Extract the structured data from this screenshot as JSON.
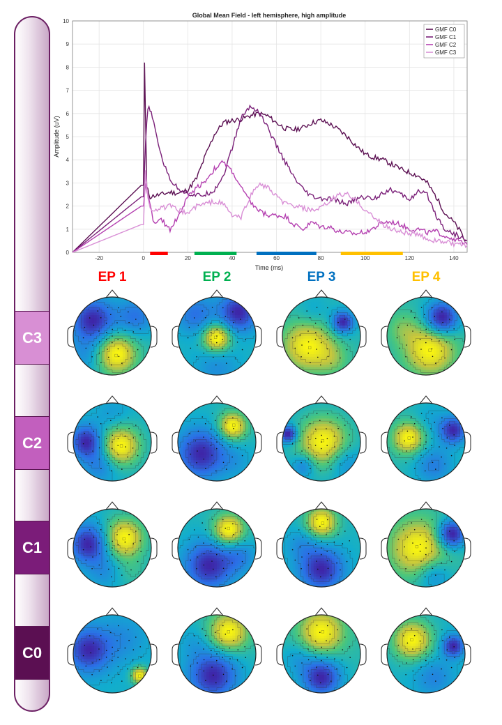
{
  "chart_data": {
    "type": "line",
    "title": "Global Mean Field - left hemisphere, high amplitude",
    "xlabel": "Time (ms)",
    "ylabel": "Amplitude (uV)",
    "xlim": [
      -32,
      146
    ],
    "ylim": [
      0,
      10
    ],
    "xticks": [
      -20,
      0,
      20,
      40,
      60,
      80,
      100,
      120,
      140
    ],
    "yticks": [
      0,
      1,
      2,
      3,
      4,
      5,
      6,
      7,
      8,
      9,
      10
    ],
    "grid": true,
    "legend_position": "top-right",
    "series": [
      {
        "name": "GMF C0",
        "color": "#5b0f52",
        "x": [
          -32,
          -1,
          0,
          0.5,
          1.5,
          3,
          5,
          8,
          12,
          16,
          20,
          24,
          28,
          32,
          36,
          40,
          44,
          48,
          52,
          56,
          60,
          64,
          68,
          72,
          76,
          80,
          84,
          88,
          92,
          96,
          100,
          104,
          108,
          112,
          116,
          120,
          124,
          128,
          132,
          136,
          140,
          143,
          145,
          146
        ],
        "y": [
          0,
          2.9,
          2.9,
          8.2,
          2.8,
          2.4,
          2.45,
          2.5,
          2.6,
          2.55,
          2.7,
          3.2,
          4.2,
          5.1,
          5.6,
          5.7,
          5.75,
          5.9,
          6.0,
          5.9,
          5.6,
          5.35,
          5.3,
          5.4,
          5.6,
          5.7,
          5.55,
          5.3,
          5.0,
          4.6,
          4.25,
          4.1,
          4.0,
          3.8,
          3.6,
          3.45,
          3.3,
          3.0,
          2.4,
          1.7,
          1.3,
          0.9,
          0.5,
          0.5
        ]
      },
      {
        "name": "GMF C1",
        "color": "#7a1f78",
        "x": [
          -32,
          -1,
          0,
          1,
          2,
          3,
          4,
          6,
          8,
          10,
          12,
          14,
          16,
          20,
          24,
          28,
          32,
          36,
          40,
          44,
          48,
          52,
          56,
          60,
          64,
          68,
          72,
          76,
          80,
          84,
          88,
          92,
          96,
          100,
          104,
          108,
          112,
          116,
          120,
          124,
          128,
          132,
          136,
          140,
          144,
          146
        ],
        "y": [
          0,
          2.4,
          2.4,
          4.8,
          6.2,
          6.2,
          5.8,
          5.0,
          4.2,
          3.6,
          3.2,
          2.9,
          2.75,
          2.55,
          2.45,
          2.5,
          2.7,
          3.3,
          4.5,
          5.8,
          6.3,
          6.1,
          5.4,
          4.6,
          3.9,
          3.2,
          2.7,
          2.4,
          2.3,
          2.3,
          2.2,
          2.1,
          2.3,
          2.4,
          2.3,
          2.6,
          2.7,
          2.5,
          2.3,
          2.6,
          2.5,
          1.6,
          1.0,
          0.8,
          0.6,
          0.5
        ]
      },
      {
        "name": "GMF C2",
        "color": "#b43fb0",
        "x": [
          -32,
          -1,
          0,
          1,
          3,
          5,
          8,
          12,
          16,
          20,
          24,
          28,
          32,
          36,
          40,
          44,
          48,
          52,
          56,
          60,
          64,
          68,
          72,
          76,
          80,
          84,
          88,
          92,
          96,
          100,
          104,
          108,
          112,
          116,
          120,
          124,
          128,
          132,
          136,
          140,
          144,
          146
        ],
        "y": [
          0,
          2.0,
          2.0,
          3.0,
          2.0,
          1.2,
          1.4,
          1.0,
          1.6,
          2.4,
          2.8,
          3.1,
          3.6,
          3.9,
          3.5,
          2.8,
          2.2,
          1.8,
          1.6,
          1.6,
          1.55,
          1.2,
          1.0,
          1.3,
          1.1,
          1.1,
          0.9,
          0.85,
          0.8,
          0.9,
          1.05,
          1.3,
          1.3,
          1.2,
          1.0,
          1.0,
          0.85,
          0.9,
          0.7,
          0.6,
          0.4,
          0.35
        ]
      },
      {
        "name": "GMF C3",
        "color": "#d98fd6",
        "x": [
          -32,
          -1,
          0,
          1,
          2,
          3,
          5,
          8,
          12,
          16,
          20,
          24,
          28,
          32,
          36,
          40,
          44,
          48,
          52,
          56,
          60,
          64,
          68,
          72,
          76,
          80,
          84,
          88,
          92,
          96,
          100,
          104,
          108,
          112,
          116,
          120,
          124,
          128,
          132,
          136,
          140,
          144,
          146
        ],
        "y": [
          0,
          1.2,
          1.2,
          3.6,
          2.3,
          1.9,
          1.85,
          1.9,
          2.0,
          1.8,
          1.7,
          2.0,
          2.1,
          2.2,
          2.1,
          1.6,
          1.5,
          2.4,
          2.95,
          2.8,
          2.4,
          2.1,
          2.0,
          1.9,
          1.8,
          1.9,
          2.2,
          2.5,
          2.5,
          2.2,
          1.85,
          1.5,
          1.2,
          1.0,
          0.9,
          0.8,
          0.75,
          0.6,
          0.5,
          0.45,
          0.35,
          0.3,
          0.3
        ]
      }
    ],
    "epoch_bars": [
      {
        "label": "EP 1",
        "start": 3,
        "end": 11,
        "color": "#ff0000"
      },
      {
        "label": "EP 2",
        "start": 23,
        "end": 42,
        "color": "#00b050"
      },
      {
        "label": "EP 3",
        "start": 51,
        "end": 78,
        "color": "#0070c0"
      },
      {
        "label": "EP 4",
        "start": 89,
        "end": 117,
        "color": "#ffc000"
      }
    ]
  },
  "epochs": [
    {
      "label": "EP 1",
      "color": "#ff0000"
    },
    {
      "label": "EP 2",
      "color": "#00b050"
    },
    {
      "label": "EP 3",
      "color": "#0070c0"
    },
    {
      "label": "EP 4",
      "color": "#ffc000"
    }
  ],
  "conditions": [
    {
      "label": "C3",
      "color": "#d88fd4"
    },
    {
      "label": "C2",
      "color": "#c25fbe"
    },
    {
      "label": "C1",
      "color": "#7b1c79"
    },
    {
      "label": "C0",
      "color": "#5b0f52"
    }
  ],
  "topomaps": [
    {
      "row": "C3",
      "maps": [
        {
          "blobs": [
            {
              "u": 0.1,
              "v": 0.45,
              "a": 0.9,
              "s": 0.35
            },
            {
              "u": -0.5,
              "v": -0.4,
              "a": -0.9,
              "s": 0.4
            },
            {
              "u": 0.6,
              "v": -0.5,
              "a": -0.5,
              "s": 0.35
            },
            {
              "u": -0.7,
              "v": 0.5,
              "a": -0.3,
              "s": 0.35
            }
          ]
        },
        {
          "blobs": [
            {
              "u": 0.0,
              "v": 0.05,
              "a": 1.1,
              "s": 0.25
            },
            {
              "u": 0.55,
              "v": -0.6,
              "a": -0.9,
              "s": 0.35
            },
            {
              "u": -0.55,
              "v": -0.55,
              "a": -0.5,
              "s": 0.35
            },
            {
              "u": 0.0,
              "v": 0.8,
              "a": -0.3,
              "s": 0.4
            }
          ]
        },
        {
          "blobs": [
            {
              "u": -0.35,
              "v": 0.25,
              "a": 0.9,
              "s": 0.45
            },
            {
              "u": 0.55,
              "v": -0.35,
              "a": -1.0,
              "s": 0.2
            },
            {
              "u": 0.3,
              "v": 0.6,
              "a": 0.3,
              "s": 0.3
            },
            {
              "u": -0.2,
              "v": -0.6,
              "a": -0.2,
              "s": 0.3
            }
          ]
        },
        {
          "blobs": [
            {
              "u": 0.1,
              "v": 0.35,
              "a": 0.9,
              "s": 0.45
            },
            {
              "u": 0.4,
              "v": -0.45,
              "a": -1.1,
              "s": 0.3
            },
            {
              "u": -0.6,
              "v": -0.2,
              "a": 0.3,
              "s": 0.3
            }
          ]
        }
      ]
    },
    {
      "row": "C2",
      "maps": [
        {
          "blobs": [
            {
              "u": 0.2,
              "v": 0.1,
              "a": 1.0,
              "s": 0.35
            },
            {
              "u": -0.65,
              "v": 0.0,
              "a": -0.9,
              "s": 0.3
            },
            {
              "u": -0.3,
              "v": 0.6,
              "a": -0.4,
              "s": 0.3
            },
            {
              "u": 0.0,
              "v": -0.7,
              "a": -0.2,
              "s": 0.3
            }
          ]
        },
        {
          "blobs": [
            {
              "u": 0.4,
              "v": -0.4,
              "a": 1.1,
              "s": 0.25
            },
            {
              "u": -0.4,
              "v": 0.3,
              "a": -1.0,
              "s": 0.45
            },
            {
              "u": 0.5,
              "v": 0.5,
              "a": -0.2,
              "s": 0.3
            }
          ]
        },
        {
          "blobs": [
            {
              "u": 0.05,
              "v": 0.0,
              "a": 0.9,
              "s": 0.45
            },
            {
              "u": -0.85,
              "v": -0.2,
              "a": -0.9,
              "s": 0.15
            },
            {
              "u": -0.45,
              "v": 0.6,
              "a": -0.4,
              "s": 0.2
            },
            {
              "u": 0.6,
              "v": 0.5,
              "a": -0.3,
              "s": 0.3
            }
          ]
        },
        {
          "blobs": [
            {
              "u": -0.45,
              "v": -0.1,
              "a": 1.0,
              "s": 0.28
            },
            {
              "u": 0.7,
              "v": -0.3,
              "a": -1.0,
              "s": 0.25
            },
            {
              "u": 0.2,
              "v": 0.6,
              "a": -0.5,
              "s": 0.35
            },
            {
              "u": 0.1,
              "v": -0.6,
              "a": -0.2,
              "s": 0.3
            }
          ]
        }
      ]
    },
    {
      "row": "C1",
      "maps": [
        {
          "blobs": [
            {
              "u": 0.3,
              "v": -0.25,
              "a": 1.1,
              "s": 0.35
            },
            {
              "u": -0.6,
              "v": -0.1,
              "a": -1.0,
              "s": 0.35
            },
            {
              "u": 0.5,
              "v": 0.6,
              "a": 0.2,
              "s": 0.3
            },
            {
              "u": -0.2,
              "v": 0.6,
              "a": -0.3,
              "s": 0.3
            }
          ]
        },
        {
          "blobs": [
            {
              "u": 0.3,
              "v": -0.45,
              "a": 1.1,
              "s": 0.28
            },
            {
              "u": -0.2,
              "v": 0.45,
              "a": -1.0,
              "s": 0.45
            },
            {
              "u": 0.6,
              "v": 0.2,
              "a": -0.4,
              "s": 0.3
            }
          ]
        },
        {
          "blobs": [
            {
              "u": 0.0,
              "v": -0.65,
              "a": 1.1,
              "s": 0.28
            },
            {
              "u": 0.0,
              "v": 0.55,
              "a": -1.0,
              "s": 0.4
            },
            {
              "u": -0.5,
              "v": -0.1,
              "a": -0.3,
              "s": 0.3
            }
          ]
        },
        {
          "blobs": [
            {
              "u": -0.2,
              "v": 0.0,
              "a": 0.8,
              "s": 0.5
            },
            {
              "u": 0.65,
              "v": -0.35,
              "a": -1.0,
              "s": 0.25
            },
            {
              "u": 0.2,
              "v": 0.7,
              "a": -0.4,
              "s": 0.3
            }
          ]
        }
      ]
    },
    {
      "row": "C0",
      "maps": [
        {
          "blobs": [
            {
              "u": 0.7,
              "v": 0.55,
              "a": 1.2,
              "s": 0.15
            },
            {
              "u": -0.6,
              "v": -0.1,
              "a": -1.0,
              "s": 0.4
            },
            {
              "u": 0.3,
              "v": -0.4,
              "a": -0.3,
              "s": 0.4
            }
          ]
        },
        {
          "blobs": [
            {
              "u": 0.3,
              "v": -0.55,
              "a": 1.0,
              "s": 0.35
            },
            {
              "u": -0.1,
              "v": 0.55,
              "a": -1.0,
              "s": 0.45
            },
            {
              "u": -0.6,
              "v": -0.3,
              "a": -0.2,
              "s": 0.3
            }
          ]
        },
        {
          "blobs": [
            {
              "u": 0.0,
              "v": -0.55,
              "a": 1.0,
              "s": 0.4
            },
            {
              "u": 0.0,
              "v": 0.6,
              "a": -1.1,
              "s": 0.35
            },
            {
              "u": -0.6,
              "v": 0.1,
              "a": -0.3,
              "s": 0.3
            }
          ]
        },
        {
          "blobs": [
            {
              "u": -0.35,
              "v": -0.35,
              "a": 1.1,
              "s": 0.35
            },
            {
              "u": 0.7,
              "v": -0.2,
              "a": -1.0,
              "s": 0.2
            },
            {
              "u": 0.2,
              "v": 0.6,
              "a": -0.4,
              "s": 0.35
            }
          ]
        }
      ]
    }
  ]
}
